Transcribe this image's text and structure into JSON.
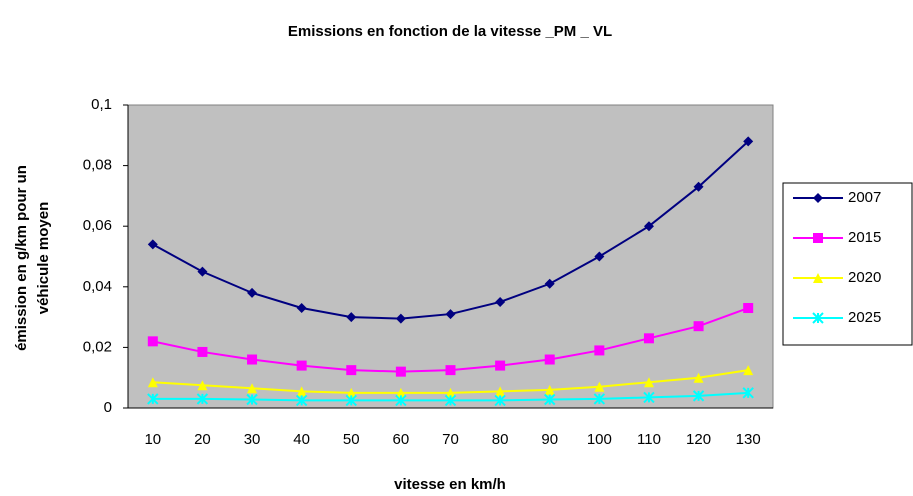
{
  "chart_data": {
    "type": "line",
    "title": "Emissions en fonction de la vitesse _PM _ VL",
    "x_label": "vitesse en km/h",
    "y_label_lines": [
      "émission en g/km pour un",
      "véhicule moyen"
    ],
    "categories": [
      "10",
      "20",
      "30",
      "40",
      "50",
      "60",
      "70",
      "80",
      "90",
      "100",
      "110",
      "120",
      "130"
    ],
    "ylim": [
      0,
      0.1
    ],
    "yticks": [
      0,
      {
        "value": 0.02,
        "label": "0,02"
      },
      {
        "value": 0.04,
        "label": "0,04"
      },
      {
        "value": 0.06,
        "label": "0,06"
      },
      {
        "value": 0.08,
        "label": "0,08"
      },
      {
        "value": 0.1,
        "label": "0,1"
      }
    ],
    "plot_background": "#c0c0c0",
    "legend": "right",
    "series": [
      {
        "name": "2007",
        "color": "#000080",
        "marker": "diamond",
        "values": [
          0.054,
          0.045,
          0.038,
          0.033,
          0.03,
          0.0295,
          0.031,
          0.035,
          0.041,
          0.05,
          0.06,
          0.073,
          0.088
        ]
      },
      {
        "name": "2015",
        "color": "#ff00ff",
        "marker": "square",
        "values": [
          0.022,
          0.0185,
          0.016,
          0.014,
          0.0125,
          0.012,
          0.0125,
          0.014,
          0.016,
          0.019,
          0.023,
          0.027,
          0.033
        ]
      },
      {
        "name": "2020",
        "color": "#ffff00",
        "marker": "triangle",
        "values": [
          0.0085,
          0.0075,
          0.0065,
          0.0055,
          0.005,
          0.005,
          0.005,
          0.0055,
          0.006,
          0.007,
          0.0085,
          0.01,
          0.0125
        ]
      },
      {
        "name": "2025",
        "color": "#00ffff",
        "marker": "cross",
        "values": [
          0.003,
          0.003,
          0.0028,
          0.0025,
          0.0025,
          0.0025,
          0.0025,
          0.0025,
          0.0028,
          0.003,
          0.0035,
          0.004,
          0.005
        ]
      }
    ]
  }
}
